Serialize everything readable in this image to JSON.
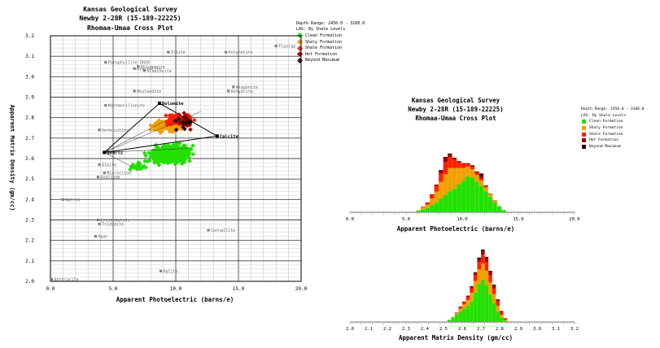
{
  "crossplot": {
    "title1": "Kansas Geological Survey",
    "title2": "Newby 2-28R (15-189-22225)",
    "title3": "Rhomaa-Umaa Cross Plot",
    "depth_range": "Depth Range: 2450.0 - 3100.0",
    "las_label": "LAS: By Shale Levels",
    "xlabel": "Apparent Photoelectric (barns/e)",
    "ylabel": "Apparent Matrix Density (gm/cc)",
    "legend": [
      "Clean Formation",
      "Shaly Formation",
      "Shale Formation",
      "Hot Formation",
      "Beyond Maximum"
    ]
  },
  "histogram_pe": {
    "title1": "Kansas Geological Survey",
    "title2": "Newby 2-28R (15-189-22225)",
    "title3": "Rhomaa-Umaa Cross Plot",
    "depth_range": "Depth Range: 2450.0 - 3100.0",
    "las_label": "LAS: By Shale Levels",
    "xlabel": "Apparent Photoelectric (barns/e)",
    "legend": [
      "Clean Formation",
      "Shaly Formation",
      "Shale Formation",
      "Hot Formation",
      "Beyond Maximum"
    ]
  },
  "histogram_rho": {
    "xlabel": "Apparent Matrix Density (gm/cc)"
  },
  "colors": {
    "clean": "#22e000",
    "shaly": "#f0a000",
    "shale": "#ff2000",
    "hot": "#a00000",
    "beyond": "#2a0000",
    "mineral": "#808080"
  },
  "chart_data": [
    {
      "type": "scatter",
      "title": "Rhomaa-Umaa Cross Plot",
      "xlabel": "Apparent Photoelectric (barns/e)",
      "ylabel": "Apparent Matrix Density (gm/cc)",
      "xlim": [
        0.0,
        20.0
      ],
      "ylim": [
        2.0,
        3.2
      ],
      "x_ticks": [
        "0.0",
        "5.0",
        "10.0",
        "15.0",
        "20.0"
      ],
      "y_ticks": [
        "2.0",
        "2.1",
        "2.2",
        "2.3",
        "2.4",
        "2.5",
        "2.6",
        "2.7",
        "2.8",
        "2.9",
        "3.0",
        "3.1",
        "3.2"
      ],
      "grid": true,
      "legend_position": "right",
      "minerals": [
        {
          "name": "Fluorap",
          "x": 18.0,
          "y": 3.15
        },
        {
          "name": "Illite",
          "x": 9.4,
          "y": 3.12
        },
        {
          "name": "Polyhalite",
          "x": 14.0,
          "y": 3.12
        },
        {
          "name": "Pyrophyllite OH20",
          "x": 4.4,
          "y": 3.07
        },
        {
          "name": "Phlogopite",
          "x": 7.0,
          "y": 3.05
        },
        {
          "name": "Rjectolite",
          "x": 6.7,
          "y": 3.04
        },
        {
          "name": "Glauconite",
          "x": 7.5,
          "y": 3.03
        },
        {
          "name": "Aragonite",
          "x": 14.6,
          "y": 2.95
        },
        {
          "name": "Anhydrite",
          "x": 14.2,
          "y": 2.93
        },
        {
          "name": "Heulandite",
          "x": 6.7,
          "y": 2.93
        },
        {
          "name": "Montmorillonite",
          "x": 4.4,
          "y": 2.86
        },
        {
          "name": "Vermiculite",
          "x": 3.9,
          "y": 2.74
        },
        {
          "name": "Albite",
          "x": 3.9,
          "y": 2.57
        },
        {
          "name": "Microcline",
          "x": 4.3,
          "y": 2.53
        },
        {
          "name": "Analcime",
          "x": 3.8,
          "y": 2.51
        },
        {
          "name": "Natron",
          "x": 1.0,
          "y": 2.4
        },
        {
          "name": "Cristobalite",
          "x": 3.8,
          "y": 2.3
        },
        {
          "name": "Tridymite",
          "x": 3.9,
          "y": 2.28
        },
        {
          "name": "Opal",
          "x": 3.6,
          "y": 2.22
        },
        {
          "name": "Carnallite",
          "x": 12.6,
          "y": 2.25
        },
        {
          "name": "Halite",
          "x": 8.8,
          "y": 2.05
        },
        {
          "name": "Anthracite",
          "x": 0.1,
          "y": 2.01
        }
      ],
      "endpoints": [
        {
          "name": "Dolomite",
          "x": 8.7,
          "y": 2.87
        },
        {
          "name": "Calcite",
          "x": 13.3,
          "y": 2.71
        },
        {
          "name": "Quartz",
          "x": 4.3,
          "y": 2.63
        }
      ]
    },
    {
      "type": "bar",
      "title": "Rhomaa-Umaa Cross Plot",
      "xlabel": "Apparent Photoelectric (barns/e)",
      "xlim": [
        0.0,
        20.0
      ],
      "x_ticks": [
        "0.0",
        "5.0",
        "10.0",
        "15.0",
        "20.0"
      ],
      "stacked": true,
      "series_order": [
        "clean",
        "shaly",
        "shale",
        "hot",
        "beyond"
      ],
      "x": [
        6.1,
        6.5,
        6.9,
        7.3,
        7.7,
        8.1,
        8.5,
        8.9,
        9.3,
        9.7,
        10.1,
        10.5,
        10.9,
        11.3,
        11.7,
        12.1,
        12.5,
        12.9,
        13.3,
        13.7
      ],
      "series": [
        {
          "name": "Clean Formation",
          "values": [
            2,
            4,
            6,
            10,
            14,
            20,
            25,
            30,
            34,
            40,
            46,
            52,
            50,
            44,
            38,
            30,
            22,
            14,
            8,
            3
          ]
        },
        {
          "name": "Shaly Formation",
          "values": [
            1,
            3,
            5,
            10,
            16,
            24,
            30,
            34,
            30,
            24,
            18,
            14,
            12,
            10,
            8,
            6,
            4,
            2,
            1,
            0
          ]
        },
        {
          "name": "Shale Formation",
          "values": [
            0,
            1,
            2,
            5,
            8,
            12,
            18,
            16,
            12,
            8,
            6,
            4,
            4,
            3,
            3,
            2,
            1,
            1,
            0,
            0
          ]
        },
        {
          "name": "Hot Formation",
          "values": [
            0,
            0,
            1,
            1,
            2,
            4,
            6,
            4,
            3,
            2,
            1,
            1,
            2,
            2,
            4,
            1,
            0,
            0,
            0,
            0
          ]
        },
        {
          "name": "Beyond Maximum",
          "values": [
            0,
            0,
            0,
            0,
            0,
            1,
            1,
            1,
            0,
            0,
            0,
            0,
            0,
            0,
            3,
            0,
            0,
            0,
            0,
            0
          ]
        }
      ]
    },
    {
      "type": "bar",
      "xlabel": "Apparent Matrix Density (gm/cc)",
      "xlim": [
        2.0,
        3.2
      ],
      "x_ticks": [
        "2.0",
        "2.1",
        "2.2",
        "2.3",
        "2.4",
        "2.5",
        "2.6",
        "2.7",
        "2.8",
        "2.9",
        "3.0",
        "3.1",
        "3.2"
      ],
      "stacked": true,
      "series_order": [
        "clean",
        "shaly",
        "shale",
        "hot",
        "beyond"
      ],
      "x": [
        2.53,
        2.55,
        2.57,
        2.59,
        2.61,
        2.63,
        2.65,
        2.67,
        2.69,
        2.71,
        2.73,
        2.75,
        2.77,
        2.79,
        2.81,
        2.83
      ],
      "series": [
        {
          "name": "Clean Formation",
          "values": [
            3,
            6,
            10,
            14,
            18,
            22,
            28,
            40,
            52,
            58,
            50,
            38,
            26,
            14,
            6,
            2
          ]
        },
        {
          "name": "Shaly Formation",
          "values": [
            0,
            1,
            2,
            4,
            6,
            8,
            12,
            16,
            20,
            22,
            20,
            16,
            12,
            8,
            4,
            1
          ]
        },
        {
          "name": "Shale Formation",
          "values": [
            0,
            0,
            1,
            2,
            3,
            4,
            6,
            8,
            10,
            12,
            12,
            10,
            8,
            6,
            3,
            1
          ]
        },
        {
          "name": "Hot Formation",
          "values": [
            0,
            0,
            0,
            1,
            1,
            2,
            2,
            3,
            4,
            5,
            6,
            5,
            4,
            3,
            2,
            1
          ]
        },
        {
          "name": "Beyond Maximum",
          "values": [
            0,
            0,
            0,
            0,
            0,
            0,
            1,
            1,
            2,
            2,
            1,
            1,
            1,
            0,
            0,
            0
          ]
        }
      ]
    }
  ]
}
